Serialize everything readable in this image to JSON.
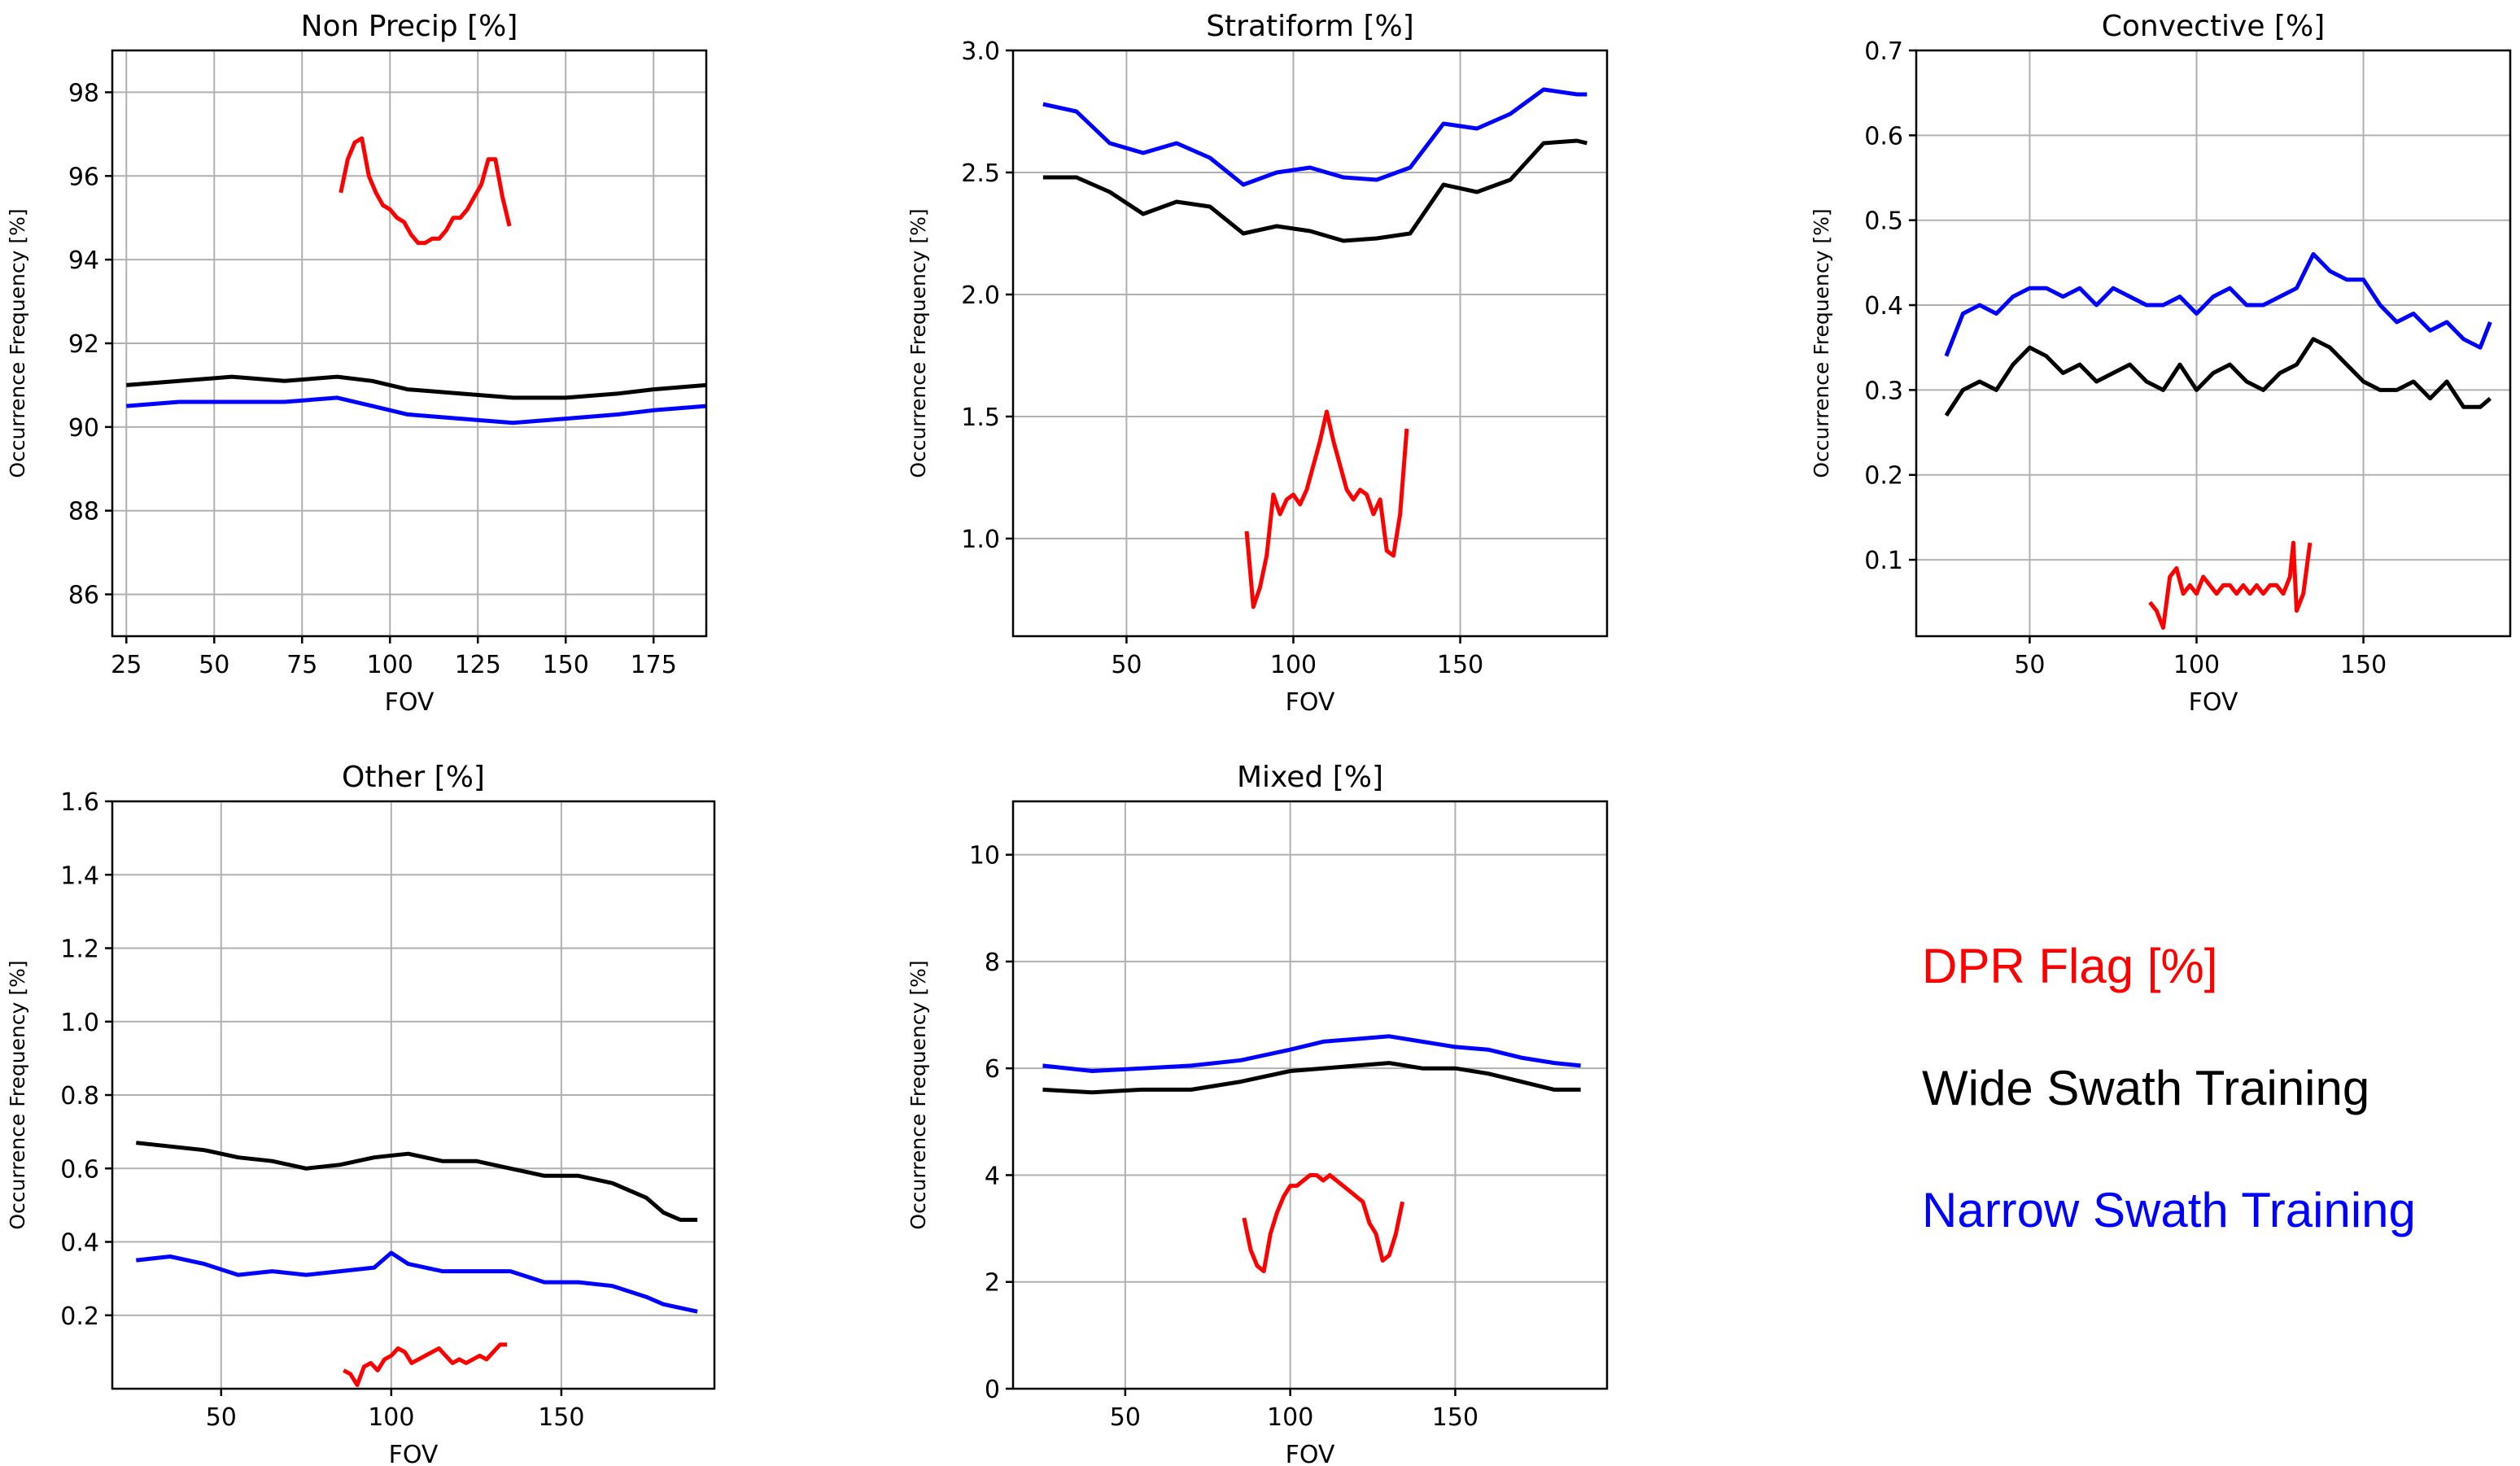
{
  "chart_data": [
    {
      "type": "line",
      "title": "Non Precip [%]",
      "xlabel": "FOV",
      "ylabel": "Occurrence Frequency [%]",
      "xlim": [
        21,
        190
      ],
      "ylim": [
        85,
        99
      ],
      "xticks": [
        25,
        50,
        75,
        100,
        125,
        150,
        175
      ],
      "yticks": [
        86,
        88,
        90,
        92,
        94,
        96,
        98
      ],
      "grid": true,
      "series": [
        {
          "name": "Wide Swath Training",
          "color": "#000000",
          "x": [
            25,
            40,
            55,
            70,
            85,
            95,
            105,
            120,
            135,
            150,
            165,
            175,
            190
          ],
          "y": [
            91.0,
            91.1,
            91.2,
            91.1,
            91.2,
            91.1,
            90.9,
            90.8,
            90.7,
            90.7,
            90.8,
            90.9,
            91.0
          ]
        },
        {
          "name": "Narrow Swath Training",
          "color": "#0000ff",
          "x": [
            25,
            40,
            55,
            70,
            85,
            95,
            105,
            120,
            135,
            150,
            165,
            175,
            190
          ],
          "y": [
            90.5,
            90.6,
            90.6,
            90.6,
            90.7,
            90.5,
            90.3,
            90.2,
            90.1,
            90.2,
            90.3,
            90.4,
            90.5
          ]
        },
        {
          "name": "DPR Flag [%]",
          "color": "#ff0000",
          "x": [
            86,
            88,
            90,
            92,
            94,
            96,
            98,
            100,
            102,
            104,
            106,
            108,
            110,
            112,
            114,
            116,
            118,
            120,
            122,
            124,
            126,
            128,
            130,
            132,
            134
          ],
          "y": [
            95.6,
            96.4,
            96.8,
            96.9,
            96.0,
            95.6,
            95.3,
            95.2,
            95.0,
            94.9,
            94.6,
            94.4,
            94.4,
            94.5,
            94.5,
            94.7,
            95.0,
            95.0,
            95.2,
            95.5,
            95.8,
            96.4,
            96.4,
            95.5,
            94.8
          ]
        }
      ]
    },
    {
      "type": "line",
      "title": "Stratiform [%]",
      "xlabel": "FOV",
      "ylabel": "Occurrence Frequency [%]",
      "xlim": [
        16,
        194
      ],
      "ylim": [
        0.6,
        3.0
      ],
      "xticks": [
        50,
        100,
        150
      ],
      "yticks": [
        1.0,
        1.5,
        2.0,
        2.5,
        3.0
      ],
      "grid": true,
      "series": [
        {
          "name": "Wide Swath Training",
          "color": "#000000",
          "x": [
            25,
            35,
            45,
            55,
            65,
            75,
            85,
            95,
            105,
            115,
            125,
            135,
            145,
            155,
            165,
            175,
            185,
            188
          ],
          "y": [
            2.48,
            2.48,
            2.42,
            2.33,
            2.38,
            2.36,
            2.25,
            2.28,
            2.26,
            2.22,
            2.23,
            2.25,
            2.45,
            2.42,
            2.47,
            2.62,
            2.63,
            2.62
          ]
        },
        {
          "name": "Narrow Swath Training",
          "color": "#0000ff",
          "x": [
            25,
            35,
            45,
            55,
            65,
            75,
            85,
            95,
            105,
            115,
            125,
            135,
            145,
            155,
            165,
            175,
            185,
            188
          ],
          "y": [
            2.78,
            2.75,
            2.62,
            2.58,
            2.62,
            2.56,
            2.45,
            2.5,
            2.52,
            2.48,
            2.47,
            2.52,
            2.7,
            2.68,
            2.74,
            2.84,
            2.82,
            2.82
          ]
        },
        {
          "name": "DPR Flag [%]",
          "color": "#ff0000",
          "x": [
            86,
            88,
            90,
            92,
            94,
            96,
            98,
            100,
            102,
            104,
            106,
            108,
            110,
            112,
            114,
            116,
            118,
            120,
            122,
            124,
            126,
            128,
            130,
            132,
            134
          ],
          "y": [
            1.03,
            0.72,
            0.8,
            0.93,
            1.18,
            1.1,
            1.16,
            1.18,
            1.14,
            1.2,
            1.3,
            1.4,
            1.52,
            1.4,
            1.3,
            1.2,
            1.16,
            1.2,
            1.18,
            1.1,
            1.16,
            0.95,
            0.93,
            1.1,
            1.45
          ]
        }
      ]
    },
    {
      "type": "line",
      "title": "Convective [%]",
      "xlabel": "FOV",
      "ylabel": "Occurrence Frequency [%]",
      "xlim": [
        16,
        194
      ],
      "ylim": [
        0.01,
        0.7
      ],
      "xticks": [
        50,
        100,
        150
      ],
      "yticks": [
        0.1,
        0.2,
        0.3,
        0.4,
        0.5,
        0.6,
        0.7
      ],
      "grid": true,
      "series": [
        {
          "name": "Wide Swath Training",
          "color": "#000000",
          "x": [
            25,
            30,
            35,
            40,
            45,
            50,
            55,
            60,
            65,
            70,
            75,
            80,
            85,
            90,
            95,
            100,
            105,
            110,
            115,
            120,
            125,
            130,
            135,
            140,
            145,
            150,
            155,
            160,
            165,
            170,
            175,
            180,
            185,
            188
          ],
          "y": [
            0.27,
            0.3,
            0.31,
            0.3,
            0.33,
            0.35,
            0.34,
            0.32,
            0.33,
            0.31,
            0.32,
            0.33,
            0.31,
            0.3,
            0.33,
            0.3,
            0.32,
            0.33,
            0.31,
            0.3,
            0.32,
            0.33,
            0.36,
            0.35,
            0.33,
            0.31,
            0.3,
            0.3,
            0.31,
            0.29,
            0.31,
            0.28,
            0.28,
            0.29
          ]
        },
        {
          "name": "Narrow Swath Training",
          "color": "#0000ff",
          "x": [
            25,
            30,
            35,
            40,
            45,
            50,
            55,
            60,
            65,
            70,
            75,
            80,
            85,
            90,
            95,
            100,
            105,
            110,
            115,
            120,
            125,
            130,
            135,
            140,
            145,
            150,
            155,
            160,
            165,
            170,
            175,
            180,
            185,
            188
          ],
          "y": [
            0.34,
            0.39,
            0.4,
            0.39,
            0.41,
            0.42,
            0.42,
            0.41,
            0.42,
            0.4,
            0.42,
            0.41,
            0.4,
            0.4,
            0.41,
            0.39,
            0.41,
            0.42,
            0.4,
            0.4,
            0.41,
            0.42,
            0.46,
            0.44,
            0.43,
            0.43,
            0.4,
            0.38,
            0.39,
            0.37,
            0.38,
            0.36,
            0.35,
            0.38
          ]
        },
        {
          "name": "DPR Flag [%]",
          "color": "#ff0000",
          "x": [
            86,
            88,
            90,
            92,
            94,
            96,
            98,
            100,
            102,
            104,
            106,
            108,
            110,
            112,
            114,
            116,
            118,
            120,
            122,
            124,
            126,
            128,
            129,
            130,
            132,
            134
          ],
          "y": [
            0.05,
            0.04,
            0.02,
            0.08,
            0.09,
            0.06,
            0.07,
            0.06,
            0.08,
            0.07,
            0.06,
            0.07,
            0.07,
            0.06,
            0.07,
            0.06,
            0.07,
            0.06,
            0.07,
            0.07,
            0.06,
            0.08,
            0.12,
            0.04,
            0.06,
            0.12
          ]
        }
      ]
    },
    {
      "type": "line",
      "title": "Other [%]",
      "xlabel": "FOV",
      "ylabel": "Occurrence Frequency [%]",
      "xlim": [
        18,
        195
      ],
      "ylim": [
        0.0,
        1.6
      ],
      "xticks": [
        50,
        100,
        150
      ],
      "yticks": [
        0.2,
        0.4,
        0.6,
        0.8,
        1.0,
        1.2,
        1.4,
        1.6
      ],
      "grid": true,
      "series": [
        {
          "name": "Wide Swath Training",
          "color": "#000000",
          "x": [
            25,
            35,
            45,
            55,
            65,
            75,
            85,
            95,
            105,
            115,
            125,
            135,
            145,
            155,
            165,
            175,
            180,
            185,
            190
          ],
          "y": [
            0.67,
            0.66,
            0.65,
            0.63,
            0.62,
            0.6,
            0.61,
            0.63,
            0.64,
            0.62,
            0.62,
            0.6,
            0.58,
            0.58,
            0.56,
            0.52,
            0.48,
            0.46,
            0.46
          ]
        },
        {
          "name": "Narrow Swath Training",
          "color": "#0000ff",
          "x": [
            25,
            35,
            45,
            55,
            65,
            75,
            85,
            95,
            100,
            105,
            115,
            125,
            135,
            145,
            155,
            165,
            175,
            180,
            185,
            190
          ],
          "y": [
            0.35,
            0.36,
            0.34,
            0.31,
            0.32,
            0.31,
            0.32,
            0.33,
            0.37,
            0.34,
            0.32,
            0.32,
            0.32,
            0.29,
            0.29,
            0.28,
            0.25,
            0.23,
            0.22,
            0.21
          ]
        },
        {
          "name": "DPR Flag [%]",
          "color": "#ff0000",
          "x": [
            86,
            88,
            90,
            92,
            94,
            96,
            98,
            100,
            102,
            104,
            106,
            108,
            110,
            112,
            114,
            116,
            118,
            120,
            122,
            124,
            126,
            128,
            130,
            132,
            134
          ],
          "y": [
            0.05,
            0.04,
            0.01,
            0.06,
            0.07,
            0.05,
            0.08,
            0.09,
            0.11,
            0.1,
            0.07,
            0.08,
            0.09,
            0.1,
            0.11,
            0.09,
            0.07,
            0.08,
            0.07,
            0.08,
            0.09,
            0.08,
            0.1,
            0.12,
            0.12
          ]
        }
      ]
    },
    {
      "type": "line",
      "title": "Mixed [%]",
      "xlabel": "FOV",
      "ylabel": "Occurrence Frequency [%]",
      "xlim": [
        16,
        196
      ],
      "ylim": [
        0,
        11
      ],
      "xticks": [
        50,
        100,
        150
      ],
      "yticks": [
        0,
        2,
        4,
        6,
        8,
        10
      ],
      "grid": true,
      "series": [
        {
          "name": "Wide Swath Training",
          "color": "#000000",
          "x": [
            25,
            40,
            55,
            70,
            85,
            100,
            110,
            120,
            130,
            140,
            150,
            160,
            170,
            180,
            188
          ],
          "y": [
            5.6,
            5.55,
            5.6,
            5.6,
            5.75,
            5.95,
            6.0,
            6.05,
            6.1,
            6.0,
            6.0,
            5.9,
            5.75,
            5.6,
            5.6
          ]
        },
        {
          "name": "Narrow Swath Training",
          "color": "#0000ff",
          "x": [
            25,
            40,
            55,
            70,
            85,
            100,
            110,
            120,
            130,
            140,
            150,
            160,
            170,
            180,
            188
          ],
          "y": [
            6.05,
            5.95,
            6.0,
            6.05,
            6.15,
            6.35,
            6.5,
            6.55,
            6.6,
            6.5,
            6.4,
            6.35,
            6.2,
            6.1,
            6.05
          ]
        },
        {
          "name": "DPR Flag [%]",
          "color": "#ff0000",
          "x": [
            86,
            88,
            90,
            92,
            94,
            96,
            98,
            100,
            102,
            104,
            106,
            108,
            110,
            112,
            114,
            116,
            118,
            120,
            122,
            124,
            126,
            128,
            130,
            132,
            134
          ],
          "y": [
            3.2,
            2.6,
            2.3,
            2.2,
            2.9,
            3.3,
            3.6,
            3.8,
            3.8,
            3.9,
            4.0,
            4.0,
            3.9,
            4.0,
            3.9,
            3.8,
            3.7,
            3.6,
            3.5,
            3.1,
            2.9,
            2.4,
            2.5,
            2.9,
            3.5
          ]
        }
      ]
    }
  ],
  "legend": {
    "items": [
      {
        "label": "DPR Flag [%]",
        "color": "#ff0000"
      },
      {
        "label": "Wide Swath Training",
        "color": "#000000"
      },
      {
        "label": "Narrow Swath Training",
        "color": "#0000ff"
      }
    ]
  }
}
